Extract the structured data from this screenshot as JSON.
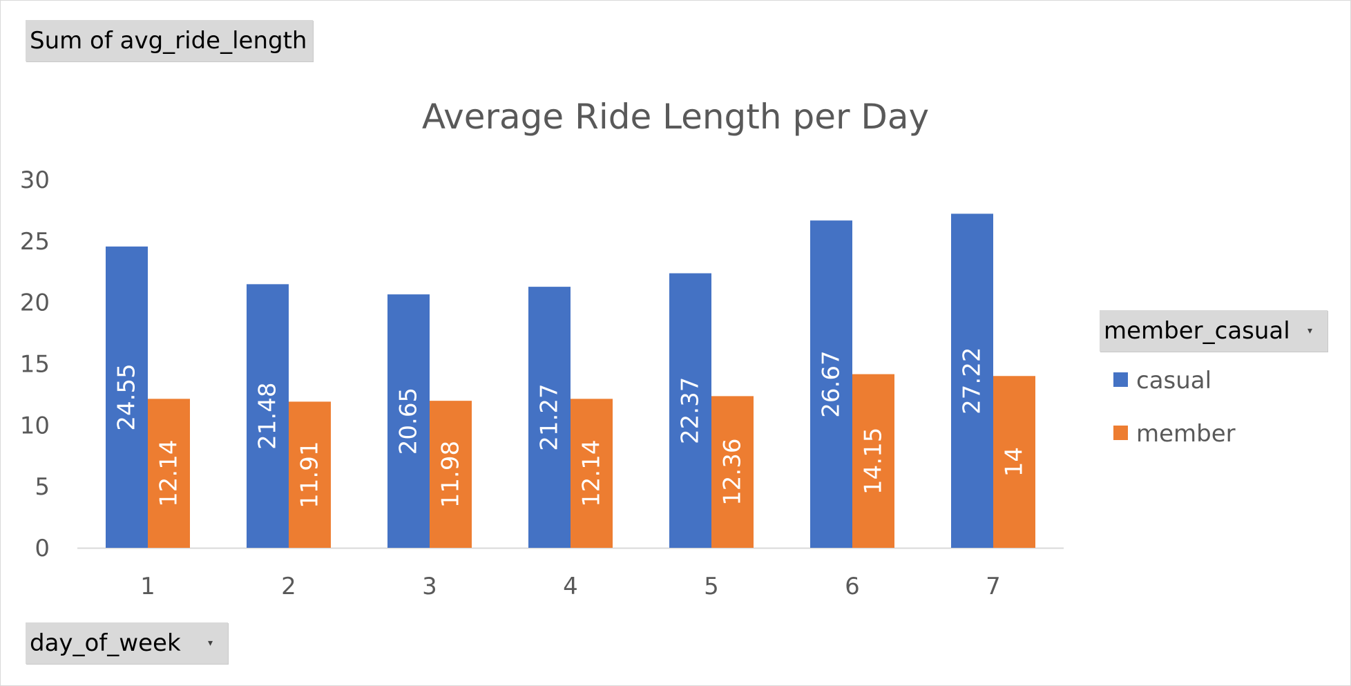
{
  "pivot": {
    "values_field": "Sum of avg_ride_length",
    "axis_field": "day_of_week",
    "legend_field": "member_casual",
    "dropdown_glyph": "▾"
  },
  "chart_data": {
    "type": "bar",
    "title": "Average Ride Length per Day",
    "xlabel": "",
    "ylabel": "",
    "categories": [
      "1",
      "2",
      "3",
      "4",
      "5",
      "6",
      "7"
    ],
    "ylim": [
      0,
      30
    ],
    "yticks": [
      0,
      5,
      10,
      15,
      20,
      25,
      30
    ],
    "grid": false,
    "legend_position": "right",
    "series": [
      {
        "name": "casual",
        "color": "#4472C4",
        "values": [
          24.55,
          21.48,
          20.65,
          21.27,
          22.37,
          26.67,
          27.22
        ]
      },
      {
        "name": "member",
        "color": "#ED7D31",
        "values": [
          12.14,
          11.91,
          11.98,
          12.14,
          12.36,
          14.15,
          14
        ]
      }
    ]
  }
}
